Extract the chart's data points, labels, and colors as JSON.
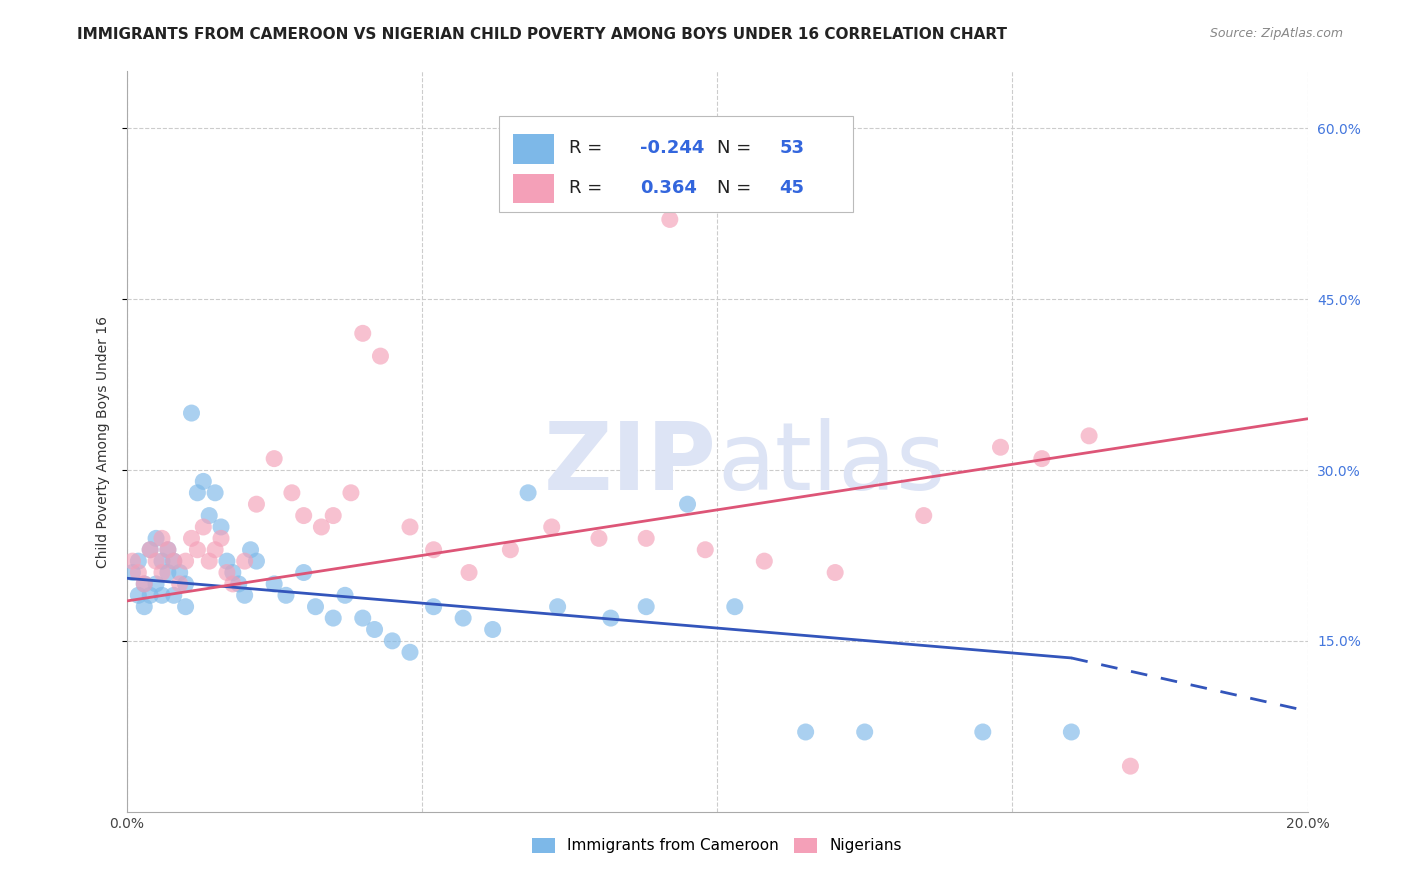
{
  "title": "IMMIGRANTS FROM CAMEROON VS NIGERIAN CHILD POVERTY AMONG BOYS UNDER 16 CORRELATION CHART",
  "source": "Source: ZipAtlas.com",
  "ylabel": "Child Poverty Among Boys Under 16",
  "xlim": [
    0.0,
    0.2
  ],
  "ylim": [
    0.0,
    0.65
  ],
  "xticks": [
    0.0,
    0.05,
    0.1,
    0.15,
    0.2
  ],
  "xtick_labels": [
    "0.0%",
    "",
    "",
    "",
    "20.0%"
  ],
  "ytick_labels_right": [
    "60.0%",
    "45.0%",
    "30.0%",
    "15.0%"
  ],
  "yticks_right": [
    0.6,
    0.45,
    0.3,
    0.15
  ],
  "color_blue": "#7db8e8",
  "color_pink": "#f4a0b8",
  "line_blue": "#3355bb",
  "line_pink": "#dd5577",
  "background": "#ffffff",
  "grid_color": "#cccccc",
  "blue_line_x0": 0.0,
  "blue_line_y0": 0.205,
  "blue_line_x1": 0.16,
  "blue_line_y1": 0.135,
  "blue_line_xd": 0.22,
  "blue_line_yd": 0.065,
  "pink_line_x0": 0.0,
  "pink_line_y0": 0.185,
  "pink_line_x1": 0.2,
  "pink_line_y1": 0.345,
  "blue_x": [
    0.001,
    0.002,
    0.002,
    0.003,
    0.003,
    0.004,
    0.004,
    0.005,
    0.005,
    0.006,
    0.006,
    0.007,
    0.007,
    0.008,
    0.008,
    0.009,
    0.01,
    0.01,
    0.011,
    0.012,
    0.013,
    0.014,
    0.015,
    0.016,
    0.017,
    0.018,
    0.019,
    0.02,
    0.021,
    0.022,
    0.025,
    0.027,
    0.03,
    0.032,
    0.035,
    0.037,
    0.04,
    0.042,
    0.045,
    0.048,
    0.052,
    0.057,
    0.062,
    0.068,
    0.073,
    0.082,
    0.088,
    0.095,
    0.103,
    0.115,
    0.125,
    0.145,
    0.16
  ],
  "blue_y": [
    0.21,
    0.19,
    0.22,
    0.2,
    0.18,
    0.23,
    0.19,
    0.24,
    0.2,
    0.22,
    0.19,
    0.21,
    0.23,
    0.19,
    0.22,
    0.21,
    0.2,
    0.18,
    0.35,
    0.28,
    0.29,
    0.26,
    0.28,
    0.25,
    0.22,
    0.21,
    0.2,
    0.19,
    0.23,
    0.22,
    0.2,
    0.19,
    0.21,
    0.18,
    0.17,
    0.19,
    0.17,
    0.16,
    0.15,
    0.14,
    0.18,
    0.17,
    0.16,
    0.28,
    0.18,
    0.17,
    0.18,
    0.27,
    0.18,
    0.07,
    0.07,
    0.07,
    0.07
  ],
  "pink_x": [
    0.001,
    0.002,
    0.003,
    0.004,
    0.005,
    0.006,
    0.006,
    0.007,
    0.008,
    0.009,
    0.01,
    0.011,
    0.012,
    0.013,
    0.014,
    0.015,
    0.016,
    0.017,
    0.018,
    0.02,
    0.022,
    0.025,
    0.028,
    0.03,
    0.033,
    0.035,
    0.038,
    0.04,
    0.043,
    0.048,
    0.052,
    0.058,
    0.065,
    0.072,
    0.08,
    0.088,
    0.092,
    0.098,
    0.108,
    0.12,
    0.135,
    0.148,
    0.155,
    0.163,
    0.17
  ],
  "pink_y": [
    0.22,
    0.21,
    0.2,
    0.23,
    0.22,
    0.24,
    0.21,
    0.23,
    0.22,
    0.2,
    0.22,
    0.24,
    0.23,
    0.25,
    0.22,
    0.23,
    0.24,
    0.21,
    0.2,
    0.22,
    0.27,
    0.31,
    0.28,
    0.26,
    0.25,
    0.26,
    0.28,
    0.42,
    0.4,
    0.25,
    0.23,
    0.21,
    0.23,
    0.25,
    0.24,
    0.24,
    0.52,
    0.23,
    0.22,
    0.21,
    0.26,
    0.32,
    0.31,
    0.33,
    0.04
  ],
  "watermark_zip": "ZIP",
  "watermark_atlas": "atlas",
  "watermark_color": "#dde4f5",
  "title_fontsize": 11,
  "source_fontsize": 9,
  "axis_label_fontsize": 10,
  "tick_fontsize": 10
}
